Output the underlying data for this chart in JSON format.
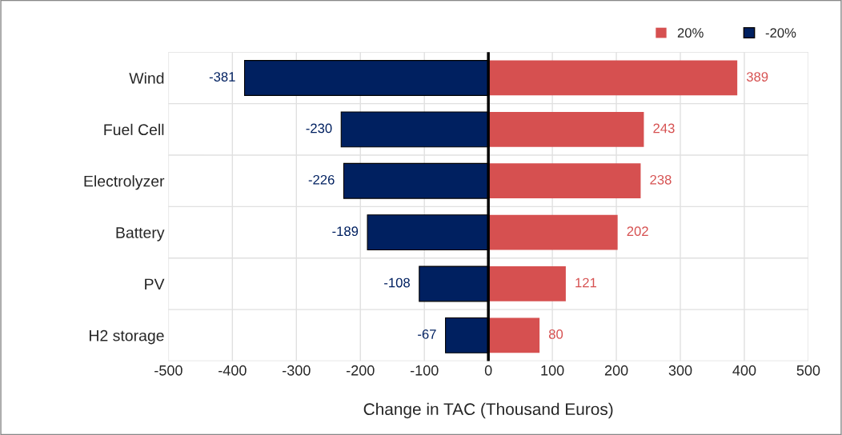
{
  "chart_data": {
    "type": "bar",
    "orientation": "horizontal",
    "stacked": true,
    "categories": [
      "Wind",
      "Fuel Cell",
      "Electrolyzer",
      "Battery",
      "PV",
      "H2 storage"
    ],
    "series": [
      {
        "name": "20%",
        "color": "#d65050",
        "values": [
          389,
          243,
          238,
          202,
          121,
          80
        ]
      },
      {
        "name": "-20%",
        "color": "#002060",
        "values": [
          -381,
          -230,
          -226,
          -189,
          -108,
          -67
        ]
      }
    ],
    "xlim": [
      -500,
      500
    ],
    "xticks": [
      -500,
      -400,
      -300,
      -200,
      -100,
      0,
      100,
      200,
      300,
      400,
      500
    ],
    "xlabel": "Change in TAC (Thousand Euros)",
    "ref_lines": [
      {
        "axis": "x",
        "value": 0,
        "color": "#000000"
      }
    ],
    "grid": "x",
    "legend": "top right",
    "data_labels": true
  }
}
